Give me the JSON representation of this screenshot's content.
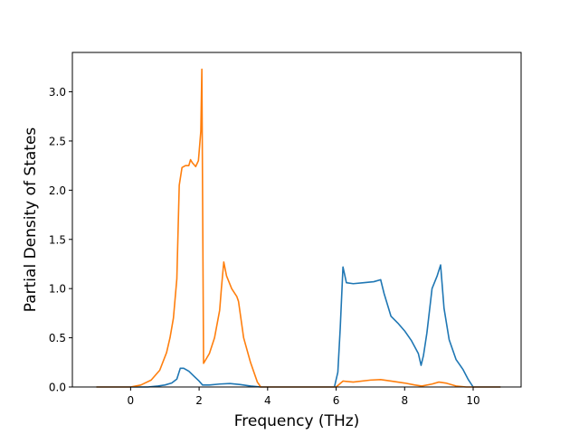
{
  "chart_data": {
    "type": "line",
    "title": "",
    "xlabel": "Frequency (THz)",
    "ylabel": "Partial Density of States",
    "xlim": [
      -1.7,
      11.4
    ],
    "ylim": [
      0,
      3.4
    ],
    "xticks": [
      0,
      2,
      4,
      6,
      8,
      10
    ],
    "yticks": [
      0.0,
      0.5,
      1.0,
      1.5,
      2.0,
      2.5,
      3.0
    ],
    "xtick_labels": [
      "0",
      "2",
      "4",
      "6",
      "8",
      "10"
    ],
    "ytick_labels": [
      "0.0",
      "0.5",
      "1.0",
      "1.5",
      "2.0",
      "2.5",
      "3.0"
    ],
    "grid": false,
    "legend": "none",
    "series": [
      {
        "color": "#1f77b4",
        "x": [
          -1.0,
          0.0,
          0.5,
          0.8,
          1.0,
          1.2,
          1.35,
          1.45,
          1.55,
          1.7,
          1.85,
          2.0,
          2.1,
          2.3,
          2.6,
          2.9,
          3.2,
          3.5,
          3.8,
          4.5,
          5.5,
          5.95,
          6.05,
          6.12,
          6.2,
          6.3,
          6.5,
          6.8,
          7.1,
          7.3,
          7.4,
          7.6,
          7.8,
          8.0,
          8.2,
          8.4,
          8.48,
          8.55,
          8.65,
          8.8,
          8.95,
          9.05,
          9.15,
          9.3,
          9.5,
          9.7,
          9.85,
          10.0,
          10.5,
          10.8
        ],
        "y": [
          0.0,
          0.0,
          0.0,
          0.01,
          0.02,
          0.04,
          0.08,
          0.19,
          0.19,
          0.16,
          0.11,
          0.06,
          0.02,
          0.02,
          0.03,
          0.035,
          0.025,
          0.01,
          0.0,
          0.0,
          0.0,
          0.0,
          0.15,
          0.6,
          1.22,
          1.06,
          1.05,
          1.06,
          1.07,
          1.09,
          0.95,
          0.72,
          0.65,
          0.57,
          0.47,
          0.34,
          0.22,
          0.32,
          0.55,
          1.0,
          1.13,
          1.24,
          0.8,
          0.48,
          0.28,
          0.18,
          0.08,
          0.0,
          0.0,
          0.0
        ]
      },
      {
        "color": "#ff7f0e",
        "x": [
          -1.0,
          0.0,
          0.3,
          0.6,
          0.85,
          1.05,
          1.15,
          1.25,
          1.35,
          1.42,
          1.5,
          1.6,
          1.7,
          1.75,
          1.8,
          1.9,
          1.98,
          2.05,
          2.08,
          2.13,
          2.3,
          2.45,
          2.6,
          2.65,
          2.72,
          2.8,
          2.95,
          3.1,
          3.15,
          3.3,
          3.5,
          3.7,
          3.8,
          4.5,
          5.5,
          6.0,
          6.1,
          6.2,
          6.5,
          7.0,
          7.3,
          7.6,
          8.0,
          8.3,
          8.5,
          8.8,
          9.0,
          9.2,
          9.5,
          9.8,
          10.0,
          10.8
        ],
        "y": [
          0.0,
          0.0,
          0.02,
          0.07,
          0.17,
          0.35,
          0.5,
          0.7,
          1.1,
          2.05,
          2.23,
          2.25,
          2.25,
          2.31,
          2.28,
          2.24,
          2.3,
          2.6,
          3.23,
          0.24,
          0.34,
          0.5,
          0.78,
          1.0,
          1.27,
          1.13,
          1.0,
          0.92,
          0.87,
          0.5,
          0.25,
          0.05,
          0.0,
          0.0,
          0.0,
          0.0,
          0.03,
          0.06,
          0.05,
          0.07,
          0.075,
          0.06,
          0.04,
          0.02,
          0.01,
          0.03,
          0.05,
          0.04,
          0.01,
          0.0,
          0.0,
          0.0
        ]
      }
    ]
  }
}
